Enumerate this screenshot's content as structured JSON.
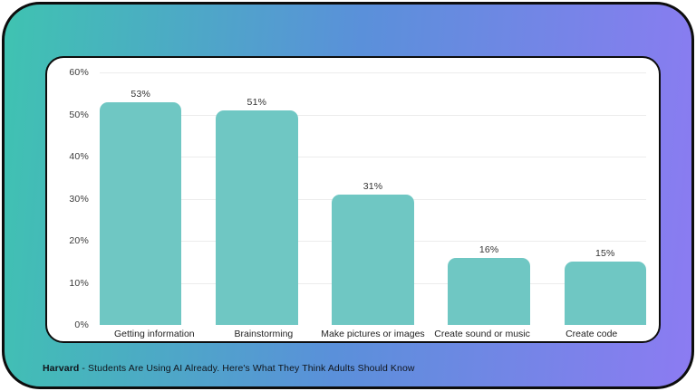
{
  "colors": {
    "gradient_left": "#3fc3b1",
    "gradient_mid": "#5a90da",
    "gradient_right": "#8c7bf2",
    "bar": "#6fc7c3",
    "gridline": "#ececec",
    "card_border": "#0d0d0d",
    "card_background": "#ffffff"
  },
  "chart_data": {
    "type": "bar",
    "categories": [
      "Getting information",
      "Brainstorming",
      "Make pictures or images",
      "Create sound or music",
      "Create code"
    ],
    "values": [
      53,
      51,
      31,
      16,
      15
    ],
    "value_labels": [
      "53%",
      "51%",
      "31%",
      "16%",
      "15%"
    ],
    "title": "",
    "xlabel": "",
    "ylabel": "",
    "ylim": [
      0,
      60
    ],
    "yticks": [
      0,
      10,
      20,
      30,
      40,
      50,
      60
    ],
    "ytick_labels": [
      "0%",
      "10%",
      "20%",
      "30%",
      "40%",
      "50%",
      "60%"
    ],
    "grid": "horizontal",
    "legend": "none",
    "bar_color": "#6fc7c3"
  },
  "caption": {
    "source": "Harvard",
    "separator": " - ",
    "text": "Students Are Using AI Already. Here's What They Think Adults Should Know"
  }
}
